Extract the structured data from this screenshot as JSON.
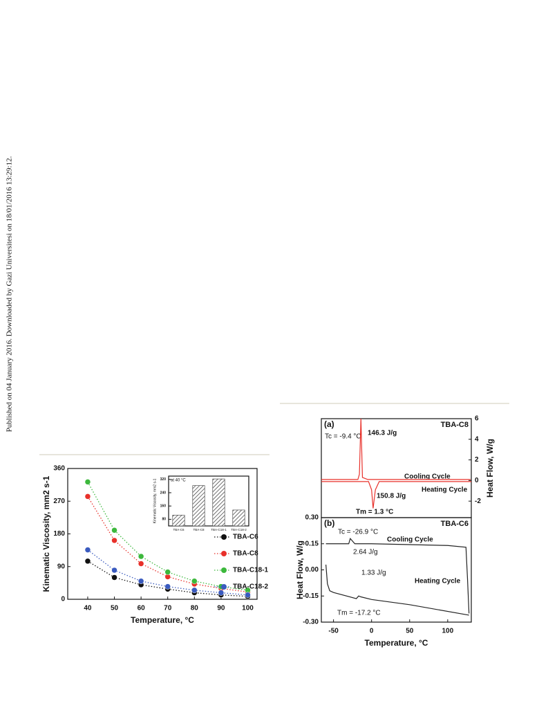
{
  "side_note": "Published on 04 January 2016. Downloaded by Gazi Universitesi on 18/01/2016 13:29:12.",
  "chart_data": [
    {
      "type": "line",
      "x": [
        40,
        50,
        60,
        70,
        80,
        90,
        100
      ],
      "xlim": [
        32.5,
        103.5
      ],
      "xticks": [
        40,
        50,
        60,
        70,
        80,
        90,
        100
      ],
      "ylim": [
        0,
        360
      ],
      "yticks": [
        0,
        90,
        180,
        270,
        360
      ],
      "xlabel": "Temperature, °C",
      "ylabel": "Kinematic Viscosity, mm2 s-1",
      "markers": true,
      "line_style": "dotted",
      "legend": "lower right",
      "series": [
        {
          "name": "TBA-C6",
          "color": "#111111",
          "values": [
            105,
            60,
            40,
            28,
            18,
            12,
            8
          ]
        },
        {
          "name": "TBA-C8",
          "color": "#e8302a",
          "values": [
            283,
            162,
            98,
            62,
            42,
            30,
            20
          ]
        },
        {
          "name": "TBA-C18-1",
          "color": "#3cb83c",
          "values": [
            323,
            190,
            118,
            75,
            50,
            35,
            25
          ]
        },
        {
          "name": "TBA-C18-2",
          "color": "#3a5bbf",
          "values": [
            136,
            80,
            50,
            35,
            25,
            18,
            12
          ]
        }
      ]
    },
    {
      "type": "bar",
      "categories": [
        "TBA-C6",
        "TBA-C8",
        "TBA-C18-1",
        "TBA-C18-2"
      ],
      "values": [
        105,
        283,
        323,
        136
      ],
      "ylim": [
        40,
        340
      ],
      "yticks": [
        80,
        160,
        240,
        320
      ],
      "ylabel": "Kinematic Viscosity, mm2 s-1",
      "annotation": "at 40 °C",
      "color": "#333333"
    },
    {
      "type": "line",
      "label": "(a)",
      "sample": "TBA-C8",
      "xlim": [
        -66,
        131
      ],
      "y2lim": [
        -3.6,
        6
      ],
      "y2ticks": [
        -2,
        0,
        2,
        4,
        6
      ],
      "y2label": "Heat Flow, W/g",
      "markers": false,
      "line_style": "solid",
      "annotations": [
        "Tc = -9.4 °C",
        "146.3 J/g",
        "Cooling Cycle",
        "Heating Cycle",
        "150.8 J/g",
        "Tm = 1.3 °C"
      ],
      "series": [
        {
          "name": "Cooling Cycle",
          "color": "#e8302a",
          "axis": "y2",
          "x": [
            130,
            -5,
            -12,
            -14,
            -16,
            -18,
            -66
          ],
          "values": [
            0.1,
            0.1,
            0.3,
            6,
            0.6,
            0.1,
            0.1
          ]
        },
        {
          "name": "Heating Cycle",
          "color": "#e8302a",
          "axis": "y2",
          "x": [
            -66,
            -4,
            0,
            2,
            5,
            10,
            131
          ],
          "values": [
            -0.1,
            -0.1,
            -0.9,
            -2.7,
            -0.9,
            -0.1,
            -0.1
          ]
        }
      ]
    },
    {
      "type": "line",
      "label": "(b)",
      "sample": "TBA-C6",
      "xlim": [
        -66,
        131
      ],
      "xticks": [
        -50,
        0,
        50,
        100
      ],
      "xlabel": "Temperature, °C",
      "ylim": [
        -0.3,
        0.3
      ],
      "yticks": [
        {
          "value": -0.3,
          "label": "-0.30"
        },
        -0.15,
        {
          "value": 0,
          "label": "0.00"
        },
        0.15,
        {
          "value": 0.3,
          "label": "0.30"
        }
      ],
      "ylabel": "Heat Flow, W/g",
      "markers": false,
      "line_style": "solid",
      "annotations": [
        "Tc = -26.9 °C",
        "Cooling Cycle",
        "2.64 J/g",
        "1.33 J/g",
        "Heating Cycle",
        "Tm = -17.2 °C"
      ],
      "series": [
        {
          "name": "Cooling Cycle",
          "color": "#222222",
          "x": [
            128,
            126,
            124,
            100,
            50,
            0,
            -22,
            -26,
            -28,
            -30,
            -40,
            -60
          ],
          "values": [
            -0.25,
            -0.05,
            0.13,
            0.14,
            0.145,
            0.15,
            0.15,
            0.17,
            0.18,
            0.15,
            0.15,
            0.15
          ]
        },
        {
          "name": "Heating Cycle",
          "color": "#222222",
          "x": [
            -60,
            -58,
            -55,
            -50,
            -20,
            -17,
            -14,
            0,
            50,
            128
          ],
          "values": [
            0.03,
            -0.08,
            -0.12,
            -0.13,
            -0.165,
            -0.15,
            -0.155,
            -0.17,
            -0.2,
            -0.26
          ]
        }
      ]
    }
  ]
}
